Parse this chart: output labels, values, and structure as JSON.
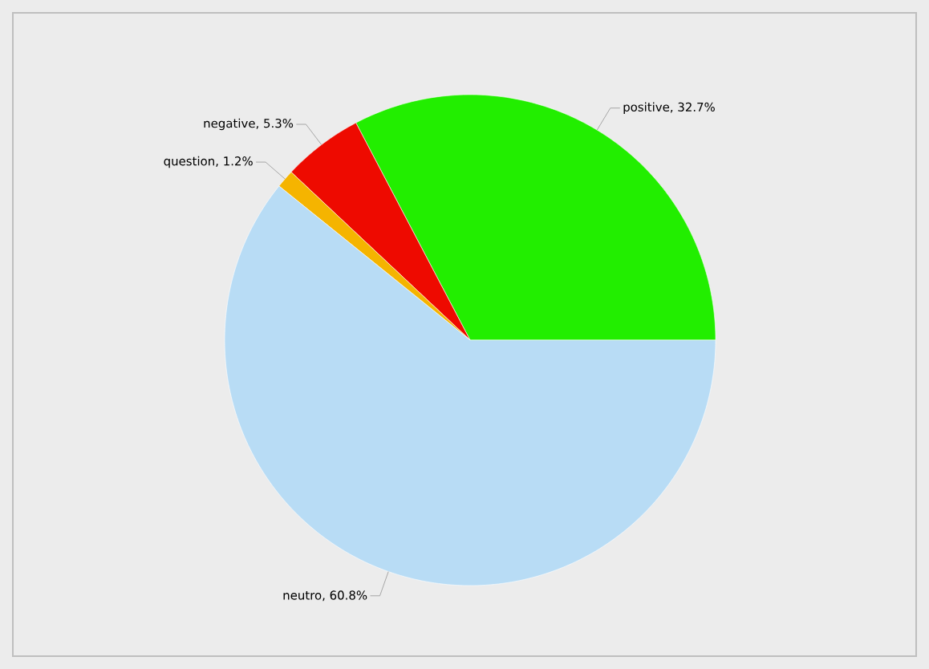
{
  "chart_data": {
    "type": "pie",
    "categories": [
      "positive, 32.7%",
      "negative, 5.3%",
      "question, 1.2%",
      "neutro, 60.8%"
    ],
    "values": [
      32.7,
      5.3,
      1.2,
      60.8
    ],
    "colors": [
      "#22ee00",
      "#ee0a00",
      "#f5b400",
      "#b8dcf5"
    ],
    "legend": false
  }
}
